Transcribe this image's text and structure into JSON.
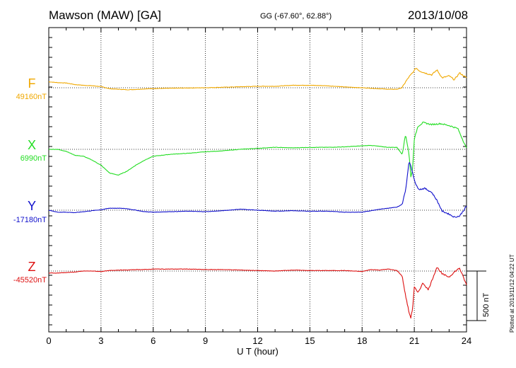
{
  "header": {
    "station": "Mawson (MAW)  [GA]",
    "coords": "GG (-67.60°,  62.88°)",
    "date": "2013/10/08"
  },
  "side_note": "Plotted at 2013/11/12 04:22 UT",
  "colors": {
    "F": "#f0a800",
    "X": "#22dd22",
    "Y": "#1010cc",
    "Z": "#dd1010",
    "axis": "#000000"
  },
  "chart_data": {
    "type": "line",
    "title": "Mawson (MAW)  [GA]",
    "xlabel": "U T (hour)",
    "ylabel": "",
    "xlim": [
      0,
      24
    ],
    "x_ticks": [
      "0",
      "3",
      "6",
      "9",
      "12",
      "15",
      "18",
      "21",
      "24"
    ],
    "scale_bar": {
      "label": "500 nT",
      "value_nT": 500
    },
    "series": [
      {
        "name": "F",
        "baseline_label": "49160nT",
        "color": "#f0a800",
        "x": [
          0,
          0.5,
          1,
          1.5,
          2,
          2.5,
          3,
          3.5,
          4,
          4.5,
          5,
          5.5,
          6,
          7,
          8,
          9,
          10,
          11,
          12,
          13,
          14,
          15,
          16,
          17,
          18,
          18.5,
          19,
          19.5,
          20,
          20.3,
          20.5,
          20.7,
          20.9,
          21.1,
          21.3,
          21.6,
          22,
          22.3,
          22.6,
          23,
          23.3,
          23.6,
          24
        ],
        "values": [
          60,
          52,
          48,
          32,
          25,
          20,
          12,
          -10,
          -15,
          -20,
          -17,
          -12,
          -8,
          -5,
          -2,
          0,
          5,
          10,
          15,
          15,
          25,
          25,
          20,
          8,
          0,
          -5,
          -10,
          -15,
          -15,
          0,
          60,
          110,
          150,
          200,
          170,
          150,
          130,
          180,
          100,
          120,
          80,
          150,
          100
        ]
      },
      {
        "name": "X",
        "baseline_label": "6990nT",
        "color": "#22dd22",
        "x": [
          0,
          0.5,
          1,
          1.5,
          2,
          2.5,
          3,
          3.5,
          4,
          4.5,
          5,
          5.5,
          6,
          7,
          8,
          9,
          10,
          11,
          12,
          13,
          14,
          15,
          16,
          17,
          18,
          18.5,
          19,
          19.5,
          20,
          20.3,
          20.5,
          20.7,
          20.8,
          20.9,
          21,
          21.2,
          21.5,
          22,
          22.5,
          23,
          23.5,
          24
        ],
        "values": [
          0,
          0,
          -20,
          -60,
          -70,
          -110,
          -160,
          -240,
          -260,
          -220,
          -160,
          -110,
          -70,
          -50,
          -40,
          -25,
          -15,
          0,
          10,
          20,
          15,
          20,
          20,
          25,
          35,
          40,
          30,
          20,
          20,
          -50,
          150,
          -50,
          -280,
          -200,
          100,
          230,
          270,
          250,
          260,
          240,
          210,
          10
        ]
      },
      {
        "name": "Y",
        "baseline_label": "-17180nT",
        "color": "#1010cc",
        "x": [
          0,
          0.5,
          1,
          1.5,
          2,
          2.5,
          3,
          3.5,
          4,
          4.5,
          5,
          5.5,
          6,
          7,
          8,
          9,
          10,
          11,
          12,
          13,
          14,
          15,
          16,
          17,
          18,
          18.5,
          19,
          19.5,
          20,
          20.3,
          20.5,
          20.7,
          20.9,
          21.1,
          21.3,
          21.6,
          22,
          22.3,
          22.6,
          23,
          23.3,
          23.6,
          24
        ],
        "values": [
          0,
          -20,
          -20,
          -25,
          -15,
          -5,
          5,
          20,
          20,
          15,
          0,
          -15,
          -20,
          -15,
          -10,
          -15,
          -5,
          10,
          0,
          -10,
          -5,
          -10,
          -10,
          -20,
          -20,
          -5,
          10,
          20,
          30,
          60,
          200,
          500,
          380,
          250,
          210,
          220,
          180,
          100,
          -10,
          -40,
          -70,
          -60,
          40
        ]
      },
      {
        "name": "Z",
        "baseline_label": "-45520nT",
        "color": "#dd1010",
        "x": [
          0,
          0.5,
          1,
          1.5,
          2,
          2.5,
          3,
          3.5,
          4,
          4.5,
          5,
          5.5,
          6,
          7,
          8,
          9,
          10,
          11,
          12,
          13,
          14,
          15,
          16,
          17,
          18,
          18.5,
          19,
          19.5,
          20,
          20.3,
          20.5,
          20.7,
          20.8,
          20.9,
          21,
          21.2,
          21.5,
          21.8,
          22,
          22.3,
          22.6,
          23,
          23.3,
          23.6,
          24
        ],
        "values": [
          -20,
          -20,
          -15,
          -10,
          0,
          0,
          -5,
          5,
          10,
          10,
          15,
          15,
          20,
          20,
          20,
          15,
          15,
          10,
          5,
          0,
          10,
          5,
          5,
          5,
          -5,
          15,
          10,
          20,
          5,
          -50,
          -250,
          -420,
          -470,
          -380,
          -160,
          -220,
          -120,
          -190,
          -100,
          40,
          -30,
          -60,
          -10,
          30,
          -140
        ]
      }
    ]
  }
}
